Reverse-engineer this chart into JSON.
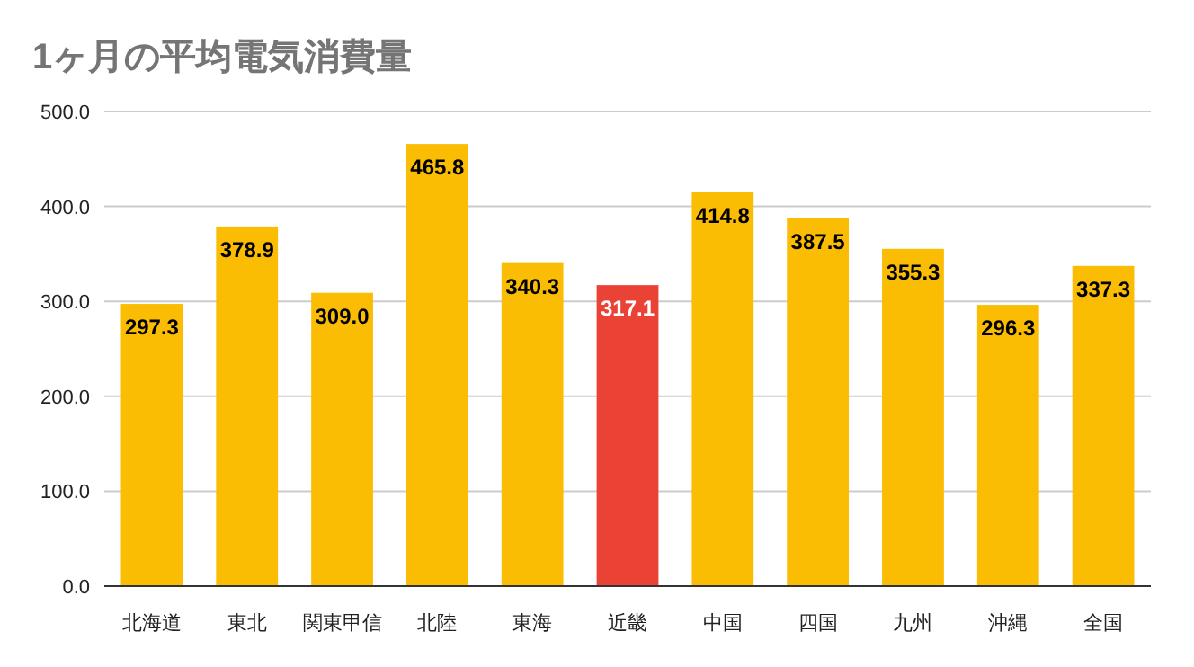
{
  "chart_data": {
    "type": "bar",
    "title": "1ヶ月の平均電気消費量",
    "categories": [
      "北海道",
      "東北",
      "関東甲信",
      "北陸",
      "東海",
      "近畿",
      "中国",
      "四国",
      "九州",
      "沖縄",
      "全国"
    ],
    "values": [
      297.3,
      378.9,
      309.0,
      465.8,
      340.3,
      317.1,
      414.8,
      387.5,
      355.3,
      296.3,
      337.3
    ],
    "value_labels": [
      "297.3",
      "378.9",
      "309.0",
      "465.8",
      "340.3",
      "317.1",
      "414.8",
      "387.5",
      "355.3",
      "296.3",
      "337.3"
    ],
    "colors": [
      "#fbbc04",
      "#fbbc04",
      "#fbbc04",
      "#fbbc04",
      "#fbbc04",
      "#ea4335",
      "#fbbc04",
      "#fbbc04",
      "#fbbc04",
      "#fbbc04",
      "#fbbc04"
    ],
    "ylim": [
      0,
      500
    ],
    "yticks": [
      {
        "value": 0,
        "label": "0.0"
      },
      {
        "value": 100,
        "label": "100.0"
      },
      {
        "value": 200,
        "label": "200.0"
      },
      {
        "value": 300,
        "label": "300.0"
      },
      {
        "value": 400,
        "label": "400.0"
      },
      {
        "value": 500,
        "label": "500.0"
      }
    ],
    "grid": "y"
  }
}
